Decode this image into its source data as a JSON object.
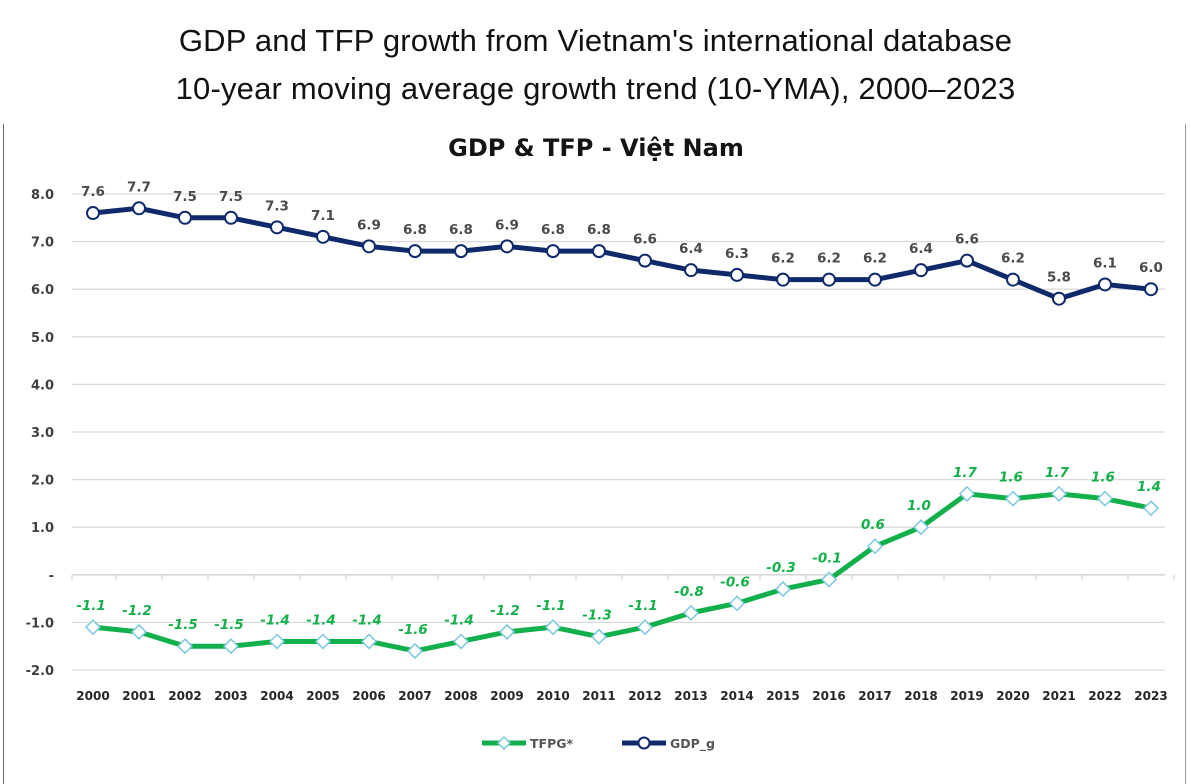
{
  "header": {
    "title_line1": "GDP and TFP growth from Vietnam's international database",
    "title_line2": "10-year moving average growth trend (10-YMA), 2000–2023"
  },
  "chart_data": {
    "type": "line",
    "title": "GDP & TFP - Việt Nam",
    "xlabel": "",
    "ylabel": "",
    "ylim": [
      -2.0,
      8.0
    ],
    "yticks": [
      8.0,
      7.0,
      6.0,
      5.0,
      4.0,
      3.0,
      2.0,
      1.0,
      0.0,
      -1.0,
      -2.0
    ],
    "ytick_labels": [
      "8.0",
      "7.0",
      "6.0",
      "5.0",
      "4.0",
      "3.0",
      "2.0",
      "1.0",
      "-",
      "-1.0",
      "-2.0"
    ],
    "grid": true,
    "legend_position": "bottom",
    "categories": [
      "2000",
      "2001",
      "2002",
      "2003",
      "2004",
      "2005",
      "2006",
      "2007",
      "2008",
      "2009",
      "2010",
      "2011",
      "2012",
      "2013",
      "2014",
      "2015",
      "2016",
      "2017",
      "2018",
      "2019",
      "2020",
      "2021",
      "2022",
      "2023"
    ],
    "series": [
      {
        "name": "TFPG*",
        "color": "#12b04a",
        "marker": "diamond",
        "marker_edge_color": "#7cc7e0",
        "label_color": "#13b04a",
        "values": [
          -1.1,
          -1.2,
          -1.5,
          -1.5,
          -1.4,
          -1.4,
          -1.4,
          -1.6,
          -1.4,
          -1.2,
          -1.1,
          -1.3,
          -1.1,
          -0.8,
          -0.6,
          -0.3,
          -0.1,
          0.6,
          1.0,
          1.7,
          1.6,
          1.7,
          1.6,
          1.4
        ]
      },
      {
        "name": "GDP_g",
        "color": "#0f2a6b",
        "marker": "circle",
        "marker_edge_color": "#0f2a6b",
        "label_color": "#4a4a4a",
        "values": [
          7.6,
          7.7,
          7.5,
          7.5,
          7.3,
          7.1,
          6.9,
          6.8,
          6.8,
          6.9,
          6.8,
          6.8,
          6.6,
          6.4,
          6.3,
          6.2,
          6.2,
          6.2,
          6.4,
          6.6,
          6.2,
          5.8,
          6.1,
          6.0
        ]
      }
    ]
  }
}
